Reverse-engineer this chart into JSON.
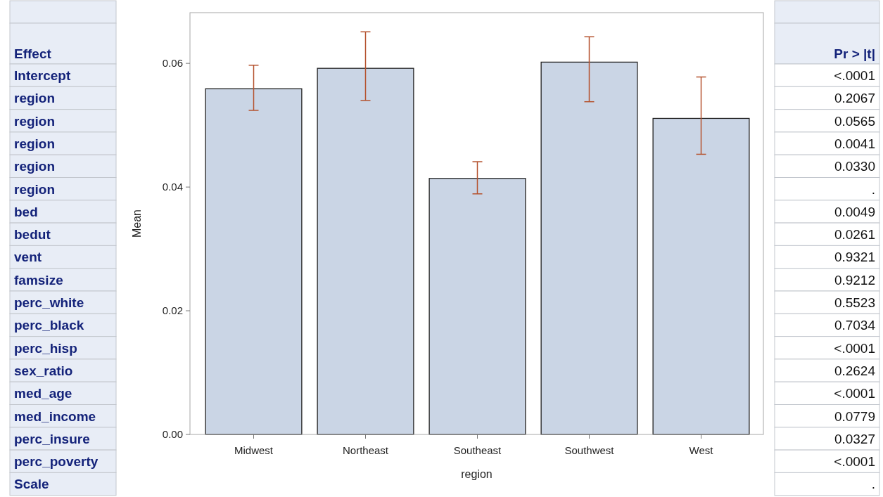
{
  "chart_data": [
    {
      "type": "other",
      "title": "Effect",
      "annotations": [
        "Intercept",
        "region",
        "region",
        "region",
        "region",
        "region",
        "bed",
        "bedut",
        "vent",
        "famsize",
        "perc_white",
        "perc_black",
        "perc_hisp",
        "sex_ratio",
        "med_age",
        "med_income",
        "perc_insure",
        "perc_poverty",
        "Scale"
      ]
    },
    {
      "type": "bar",
      "xlabel": "region",
      "ylabel": "Mean",
      "categories": [
        "Midwest",
        "Northeast",
        "Southeast",
        "Southwest",
        "West"
      ],
      "values": [
        0.0559,
        0.0592,
        0.0414,
        0.0602,
        0.0511
      ],
      "errors": [
        [
          0.0524,
          0.0597
        ],
        [
          0.054,
          0.0651
        ],
        [
          0.0389,
          0.0441
        ],
        [
          0.0538,
          0.0643
        ],
        [
          0.0453,
          0.0578
        ]
      ],
      "color": "#cad5e5",
      "ylim": [
        0,
        0.0682
      ],
      "yticks": [
        {
          "value": 0,
          "label": "0.00"
        },
        {
          "value": 0.02,
          "label": "0.02"
        },
        {
          "value": 0.04,
          "label": "0.04"
        },
        {
          "value": 0.06,
          "label": "0.06"
        }
      ],
      "grid": false
    },
    {
      "type": "other",
      "title": "Pr > |t|",
      "annotations": [
        "<.0001",
        "0.2067",
        "0.0565",
        "0.0041",
        "0.0330",
        ".",
        "0.0049",
        "0.0261",
        "0.9321",
        "0.9212",
        "0.5523",
        "0.7034",
        "<.0001",
        "0.2624",
        "<.0001",
        "0.0779",
        "0.0327",
        "<.0001",
        "."
      ]
    }
  ]
}
